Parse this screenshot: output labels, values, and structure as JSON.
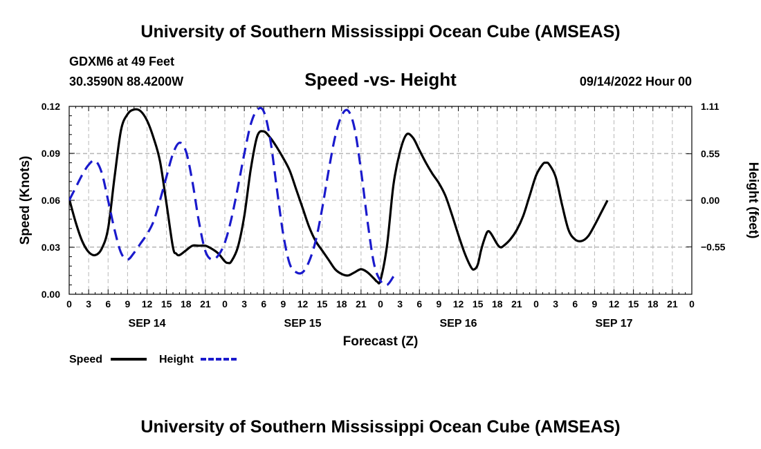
{
  "header": {
    "title": "University of Southern Mississippi Ocean Cube (AMSEAS)",
    "station": "GDXM6 at 49 Feet",
    "coords": "30.3590N  88.4200W",
    "run_time": "09/14/2022 Hour 00",
    "footer_title": "University of Southern Mississippi Ocean Cube (AMSEAS)"
  },
  "legend": {
    "speed_label": "Speed",
    "height_label": "Height"
  },
  "colors": {
    "speed": "#000000",
    "height": "#1a1acc",
    "grid": "#b8b8b8"
  },
  "chart_data": {
    "type": "line",
    "title": "Speed -vs- Height",
    "xlabel": "Forecast (Z)",
    "ylabel": "Speed (Knots)",
    "ylabel_right": "Height (feet)",
    "x_range": [
      0,
      96
    ],
    "ylim": [
      0,
      0.12
    ],
    "ylim_right": [
      -1.11,
      1.11
    ],
    "yticks": [
      "0.00",
      "0.03",
      "0.06",
      "0.09",
      "0.12"
    ],
    "yticks_right": [
      "1.11",
      "0.55",
      "0.00",
      "−0.55"
    ],
    "yticks_right_values": [
      1.11,
      0.55,
      0.0,
      -0.55
    ],
    "xtick_labels": [
      "0",
      "3",
      "6",
      "9",
      "12",
      "15",
      "18",
      "21",
      "0",
      "3",
      "6",
      "9",
      "12",
      "15",
      "18",
      "21",
      "0",
      "3",
      "6",
      "9",
      "12",
      "15",
      "18",
      "21",
      "0",
      "3",
      "6",
      "9",
      "12",
      "15",
      "18",
      "21",
      "0"
    ],
    "day_labels": [
      {
        "label": "SEP 14",
        "hour": 12
      },
      {
        "label": "SEP 15",
        "hour": 36
      },
      {
        "label": "SEP 16",
        "hour": 60
      },
      {
        "label": "SEP 17",
        "hour": 84
      }
    ],
    "grid": true,
    "series": [
      {
        "name": "Speed",
        "axis": "left",
        "style": "solid",
        "points": [
          [
            0,
            0.061
          ],
          [
            1,
            0.046
          ],
          [
            2,
            0.034
          ],
          [
            3,
            0.027
          ],
          [
            4,
            0.025
          ],
          [
            5,
            0.029
          ],
          [
            6,
            0.042
          ],
          [
            7,
            0.075
          ],
          [
            8,
            0.105
          ],
          [
            9,
            0.115
          ],
          [
            10,
            0.118
          ],
          [
            11,
            0.117
          ],
          [
            12,
            0.111
          ],
          [
            13,
            0.1
          ],
          [
            14,
            0.085
          ],
          [
            15,
            0.058
          ],
          [
            16,
            0.03
          ],
          [
            16.5,
            0.026
          ],
          [
            17,
            0.025
          ],
          [
            18,
            0.028
          ],
          [
            19,
            0.031
          ],
          [
            20,
            0.031
          ],
          [
            21,
            0.031
          ],
          [
            22,
            0.029
          ],
          [
            23,
            0.026
          ],
          [
            24,
            0.021
          ],
          [
            24.5,
            0.02
          ],
          [
            25,
            0.021
          ],
          [
            26,
            0.03
          ],
          [
            27,
            0.05
          ],
          [
            28,
            0.08
          ],
          [
            29,
            0.101
          ],
          [
            30,
            0.104
          ],
          [
            31,
            0.1
          ],
          [
            32,
            0.094
          ],
          [
            33,
            0.087
          ],
          [
            34,
            0.079
          ],
          [
            35,
            0.067
          ],
          [
            36,
            0.055
          ],
          [
            37,
            0.043
          ],
          [
            38,
            0.034
          ],
          [
            39,
            0.028
          ],
          [
            40,
            0.022
          ],
          [
            41,
            0.016
          ],
          [
            42,
            0.013
          ],
          [
            43,
            0.012
          ],
          [
            44,
            0.014
          ],
          [
            45,
            0.016
          ],
          [
            46,
            0.014
          ],
          [
            47,
            0.01
          ],
          [
            47.5,
            0.008
          ],
          [
            48,
            0.009
          ],
          [
            49,
            0.031
          ],
          [
            50,
            0.07
          ],
          [
            51,
            0.091
          ],
          [
            52,
            0.102
          ],
          [
            53,
            0.1
          ],
          [
            54,
            0.092
          ],
          [
            55,
            0.084
          ],
          [
            56,
            0.077
          ],
          [
            57,
            0.071
          ],
          [
            58,
            0.063
          ],
          [
            59,
            0.051
          ],
          [
            60,
            0.038
          ],
          [
            61,
            0.026
          ],
          [
            62,
            0.017
          ],
          [
            62.5,
            0.016
          ],
          [
            63,
            0.019
          ],
          [
            63.5,
            0.028
          ],
          [
            64,
            0.035
          ],
          [
            64.5,
            0.04
          ],
          [
            65,
            0.039
          ],
          [
            66,
            0.032
          ],
          [
            66.5,
            0.03
          ],
          [
            67,
            0.031
          ],
          [
            68,
            0.035
          ],
          [
            69,
            0.041
          ],
          [
            70,
            0.05
          ],
          [
            71,
            0.063
          ],
          [
            72,
            0.076
          ],
          [
            73,
            0.083
          ],
          [
            73.5,
            0.084
          ],
          [
            74,
            0.083
          ],
          [
            75,
            0.075
          ],
          [
            76,
            0.057
          ],
          [
            77,
            0.041
          ],
          [
            78,
            0.035
          ],
          [
            79,
            0.034
          ],
          [
            80,
            0.037
          ],
          [
            81,
            0.044
          ],
          [
            82,
            0.052
          ],
          [
            82.5,
            0.056
          ],
          [
            83,
            0.06
          ]
        ]
      },
      {
        "name": "Height",
        "axis": "right",
        "style": "dashed",
        "points": [
          [
            0,
            0.0
          ],
          [
            1,
            0.15
          ],
          [
            2,
            0.3
          ],
          [
            3,
            0.42
          ],
          [
            4,
            0.47
          ],
          [
            5,
            0.33
          ],
          [
            6,
            0.0
          ],
          [
            7,
            -0.35
          ],
          [
            8,
            -0.62
          ],
          [
            9,
            -0.7
          ],
          [
            10,
            -0.62
          ],
          [
            11,
            -0.51
          ],
          [
            12,
            -0.4
          ],
          [
            13,
            -0.25
          ],
          [
            14,
            0.0
          ],
          [
            15,
            0.28
          ],
          [
            16,
            0.55
          ],
          [
            17,
            0.68
          ],
          [
            18,
            0.58
          ],
          [
            19,
            0.22
          ],
          [
            20,
            -0.25
          ],
          [
            21,
            -0.6
          ],
          [
            22,
            -0.7
          ],
          [
            23,
            -0.65
          ],
          [
            24,
            -0.5
          ],
          [
            25,
            -0.22
          ],
          [
            26,
            0.15
          ],
          [
            27,
            0.55
          ],
          [
            28,
            0.9
          ],
          [
            29,
            1.07
          ],
          [
            30,
            1.05
          ],
          [
            31,
            0.72
          ],
          [
            32,
            0.15
          ],
          [
            33,
            -0.4
          ],
          [
            34,
            -0.75
          ],
          [
            35,
            -0.85
          ],
          [
            36,
            -0.85
          ],
          [
            37,
            -0.72
          ],
          [
            38,
            -0.48
          ],
          [
            39,
            -0.1
          ],
          [
            40,
            0.35
          ],
          [
            41,
            0.75
          ],
          [
            42,
            1.0
          ],
          [
            43,
            1.06
          ],
          [
            44,
            0.85
          ],
          [
            45,
            0.35
          ],
          [
            46,
            -0.25
          ],
          [
            47,
            -0.75
          ],
          [
            48,
            -0.95
          ],
          [
            49,
            -1.0
          ],
          [
            50,
            -0.9
          ]
        ]
      }
    ]
  }
}
